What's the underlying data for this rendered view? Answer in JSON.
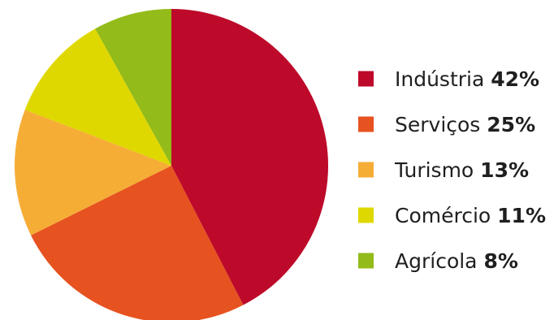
{
  "chart_data": {
    "type": "pie",
    "title": "",
    "slices": [
      {
        "label": "Indústria",
        "value": 42,
        "display": "42%",
        "color": "#be0a2a"
      },
      {
        "label": "Serviços",
        "value": 25,
        "display": "25%",
        "color": "#e65220"
      },
      {
        "label": "Turismo",
        "value": 13,
        "display": "13%",
        "color": "#f6ad36"
      },
      {
        "label": "Comércio",
        "value": 11,
        "display": "11%",
        "color": "#dfd800"
      },
      {
        "label": "Agrícola",
        "value": 8,
        "display": "8%",
        "color": "#93bb19"
      }
    ],
    "start_angle": "12 o'clock",
    "direction": "clockwise",
    "legend_placement": "right"
  }
}
